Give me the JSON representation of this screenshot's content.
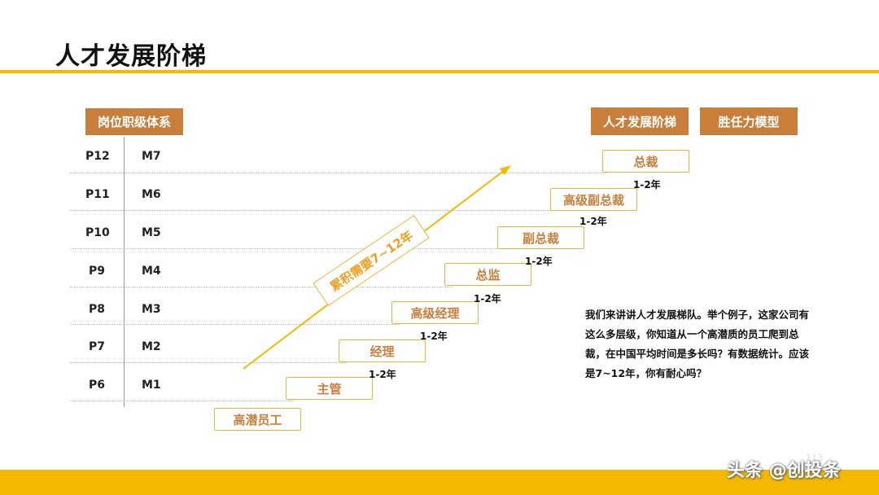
{
  "title": "人才发展阶梯",
  "headers": {
    "position_system": "岗位职级体系",
    "ladder": "人才发展阶梯",
    "competency": "胜任力模型"
  },
  "rows": [
    {
      "p": "P12",
      "m": "M7"
    },
    {
      "p": "P11",
      "m": "M6"
    },
    {
      "p": "P10",
      "m": "M5"
    },
    {
      "p": "P9",
      "m": "M4"
    },
    {
      "p": "P8",
      "m": "M3"
    },
    {
      "p": "P7",
      "m": "M2"
    },
    {
      "p": "P6",
      "m": "M1"
    }
  ],
  "levels": [
    "高潜员工",
    "主管",
    "经理",
    "高级经理",
    "总监",
    "副总裁",
    "高级副总裁",
    "总裁"
  ],
  "durations": [
    "1-2年",
    "1-2年",
    "1-2年",
    "1-2年",
    "1-2年",
    "1-2年"
  ],
  "arrow_label": "累积需要7~12年",
  "description": "我们来讲讲人才发展梯队。举个例子，这家公司有这么多层级，你知道从一个高潜质的员工爬到总裁，在中国平均时间是多长吗？有数据统计。应该是7~12年，你有耐心吗？",
  "page_number": "113",
  "watermark": "头条 @创投条",
  "colors": {
    "accent": "#f5b800",
    "header_bg": "#c87f3c",
    "box_border": "#f0b43a"
  }
}
